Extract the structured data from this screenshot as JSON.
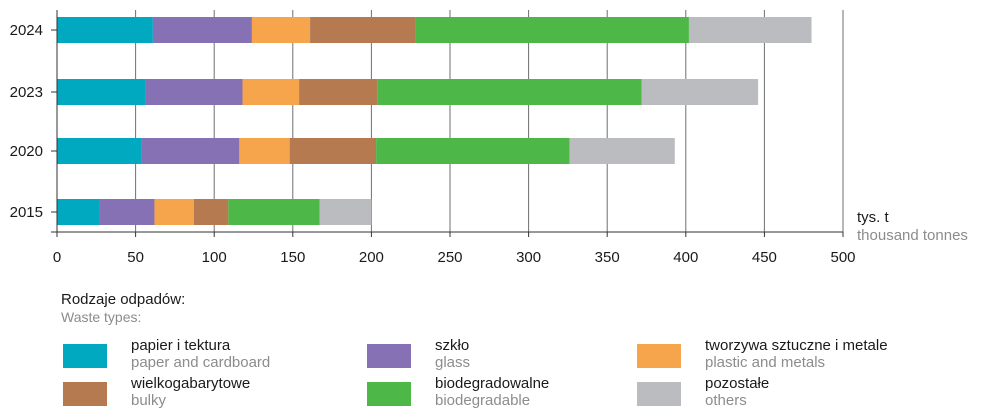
{
  "chart_data": {
    "type": "bar",
    "orientation": "horizontal",
    "stacked": true,
    "categories": [
      "2024",
      "2023",
      "2020",
      "2015"
    ],
    "series": [
      {
        "name": "papier i tektura",
        "name_en": "paper and cardboard",
        "color": "#00a9bf",
        "values": [
          61,
          56,
          54,
          27
        ]
      },
      {
        "name": "szkło",
        "name_en": "glass",
        "color": "#8671b5",
        "values": [
          63,
          62,
          62,
          35
        ]
      },
      {
        "name": "tworzywa sztuczne i metale",
        "name_en": "plastic and metals",
        "color": "#f6a54c",
        "values": [
          37,
          36,
          32,
          25
        ]
      },
      {
        "name": "wielkogabarytowe",
        "name_en": "bulky",
        "color": "#b57a4f",
        "values": [
          67,
          50,
          55,
          22
        ]
      },
      {
        "name": "biodegradowalne",
        "name_en": "biodegradable",
        "color": "#4db848",
        "values": [
          174,
          168,
          123,
          58
        ]
      },
      {
        "name": "pozostałe",
        "name_en": "others",
        "color": "#bbbcbf",
        "values": [
          78,
          74,
          67,
          33
        ]
      }
    ],
    "x_ticks": [
      "0",
      "50",
      "100",
      "150",
      "200",
      "250",
      "300",
      "350",
      "400",
      "450",
      "500"
    ],
    "xlim": [
      0,
      500
    ],
    "unit_label": "tys. t",
    "unit_label_en": "thousand tonnes",
    "grid": "vertical",
    "legend_placement": "bottom"
  },
  "legend": {
    "title": "Rodzaje odpadów:",
    "title_en": "Waste types:"
  }
}
